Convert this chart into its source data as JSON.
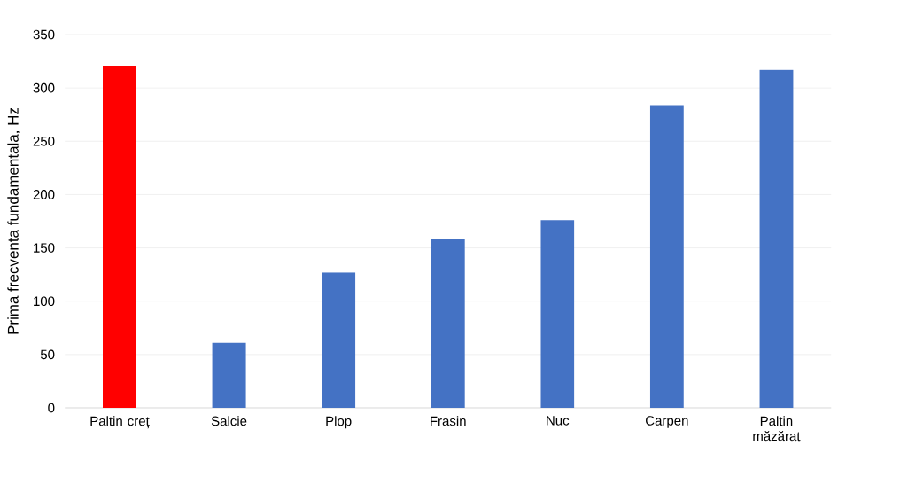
{
  "chart_data": {
    "type": "bar",
    "ylabel": "Prima frecventa fundamentala, Hz",
    "categories": [
      "Paltin creț",
      "Salcie",
      "Plop",
      "Frasin",
      "Nuc",
      "Carpen",
      "Paltin măzărat"
    ],
    "values": [
      320,
      61,
      127,
      158,
      176,
      284,
      317
    ],
    "colors": [
      "#ff0000",
      "#4472c4",
      "#4472c4",
      "#4472c4",
      "#4472c4",
      "#4472c4",
      "#4472c4"
    ],
    "ylim": [
      0,
      350
    ],
    "yticks": [
      0,
      50,
      100,
      150,
      200,
      250,
      300,
      350
    ],
    "grid": "y"
  }
}
